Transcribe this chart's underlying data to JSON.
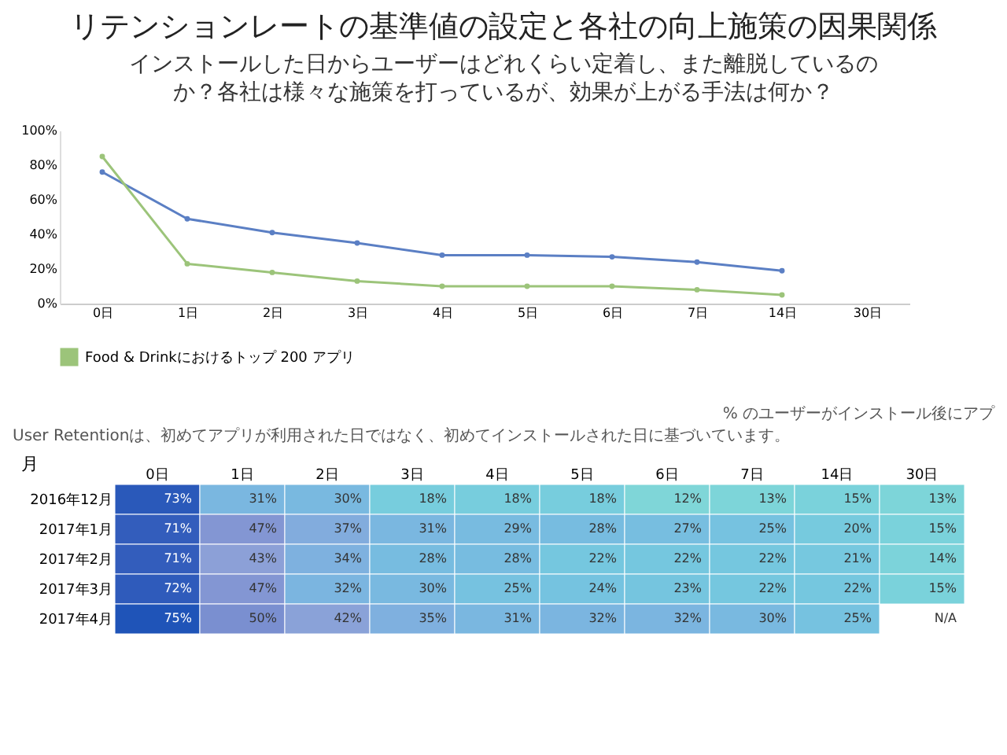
{
  "chart_data": [
    {
      "type": "line",
      "title": "リテンションレートの基準値の設定と各社の向上施策の因果関係",
      "subtitle": "インストールした日からユーザーはどれくらい定着し、また離脱しているのか？各社は様々な施策を打っているが、効果が上がる手法は何か？",
      "categories": [
        "0日",
        "1日",
        "2日",
        "3日",
        "4日",
        "5日",
        "6日",
        "7日",
        "14日",
        "30日"
      ],
      "series": [
        {
          "color": "#5b7fc4",
          "values": [
            76,
            49,
            41,
            35,
            28,
            28,
            27,
            24,
            19,
            null
          ]
        },
        {
          "name": "Food & Drinkにおけるトップ 200 アプリ",
          "color": "#9cc47a",
          "values": [
            85,
            23,
            18,
            13,
            10,
            10,
            10,
            8,
            5,
            null
          ]
        }
      ],
      "ylim": [
        0,
        100
      ],
      "yticks": [
        {
          "value": 0,
          "label": "0%"
        },
        {
          "value": 20,
          "label": "20%"
        },
        {
          "value": 40,
          "label": "40%"
        },
        {
          "value": 60,
          "label": "60%"
        },
        {
          "value": 80,
          "label": "80%"
        },
        {
          "value": 100,
          "label": "100%"
        }
      ],
      "grid": false,
      "legend": "bottom left",
      "marker": "circle",
      "annotations": [
        "% のユーザーがインストール後にアプ"
      ]
    },
    {
      "type": "heatmap",
      "ylabel": "月",
      "categories": [
        "0日",
        "1日",
        "2日",
        "3日",
        "4日",
        "5日",
        "6日",
        "7日",
        "14日",
        "30日"
      ],
      "y_categories": [
        "2016年12月",
        "2017年1月",
        "2017年2月",
        "2017年3月",
        "2017年4月"
      ],
      "cells": [
        [
          73,
          31,
          30,
          18,
          18,
          18,
          12,
          13,
          15,
          13
        ],
        [
          71,
          47,
          37,
          31,
          29,
          28,
          27,
          25,
          20,
          15
        ],
        [
          71,
          43,
          34,
          28,
          28,
          22,
          22,
          22,
          21,
          14
        ],
        [
          72,
          47,
          32,
          30,
          25,
          24,
          23,
          22,
          22,
          15
        ],
        [
          75,
          50,
          42,
          35,
          31,
          32,
          32,
          30,
          25,
          null
        ]
      ],
      "cell_labels": [
        [
          "73%",
          "31%",
          "30%",
          "18%",
          "18%",
          "18%",
          "12%",
          "13%",
          "15%",
          "13%"
        ],
        [
          "71%",
          "47%",
          "37%",
          "31%",
          "29%",
          "28%",
          "27%",
          "25%",
          "20%",
          "15%"
        ],
        [
          "71%",
          "43%",
          "34%",
          "28%",
          "28%",
          "22%",
          "22%",
          "22%",
          "21%",
          "14%"
        ],
        [
          "72%",
          "47%",
          "32%",
          "30%",
          "25%",
          "24%",
          "23%",
          "22%",
          "22%",
          "15%"
        ],
        [
          "75%",
          "50%",
          "42%",
          "35%",
          "31%",
          "32%",
          "32%",
          "30%",
          "25%",
          "N/A"
        ]
      ],
      "annotations": [
        "User Retentionは、初めてアプリが利用された日ではなく、初めてインストールされた日に基づいています。"
      ]
    }
  ]
}
